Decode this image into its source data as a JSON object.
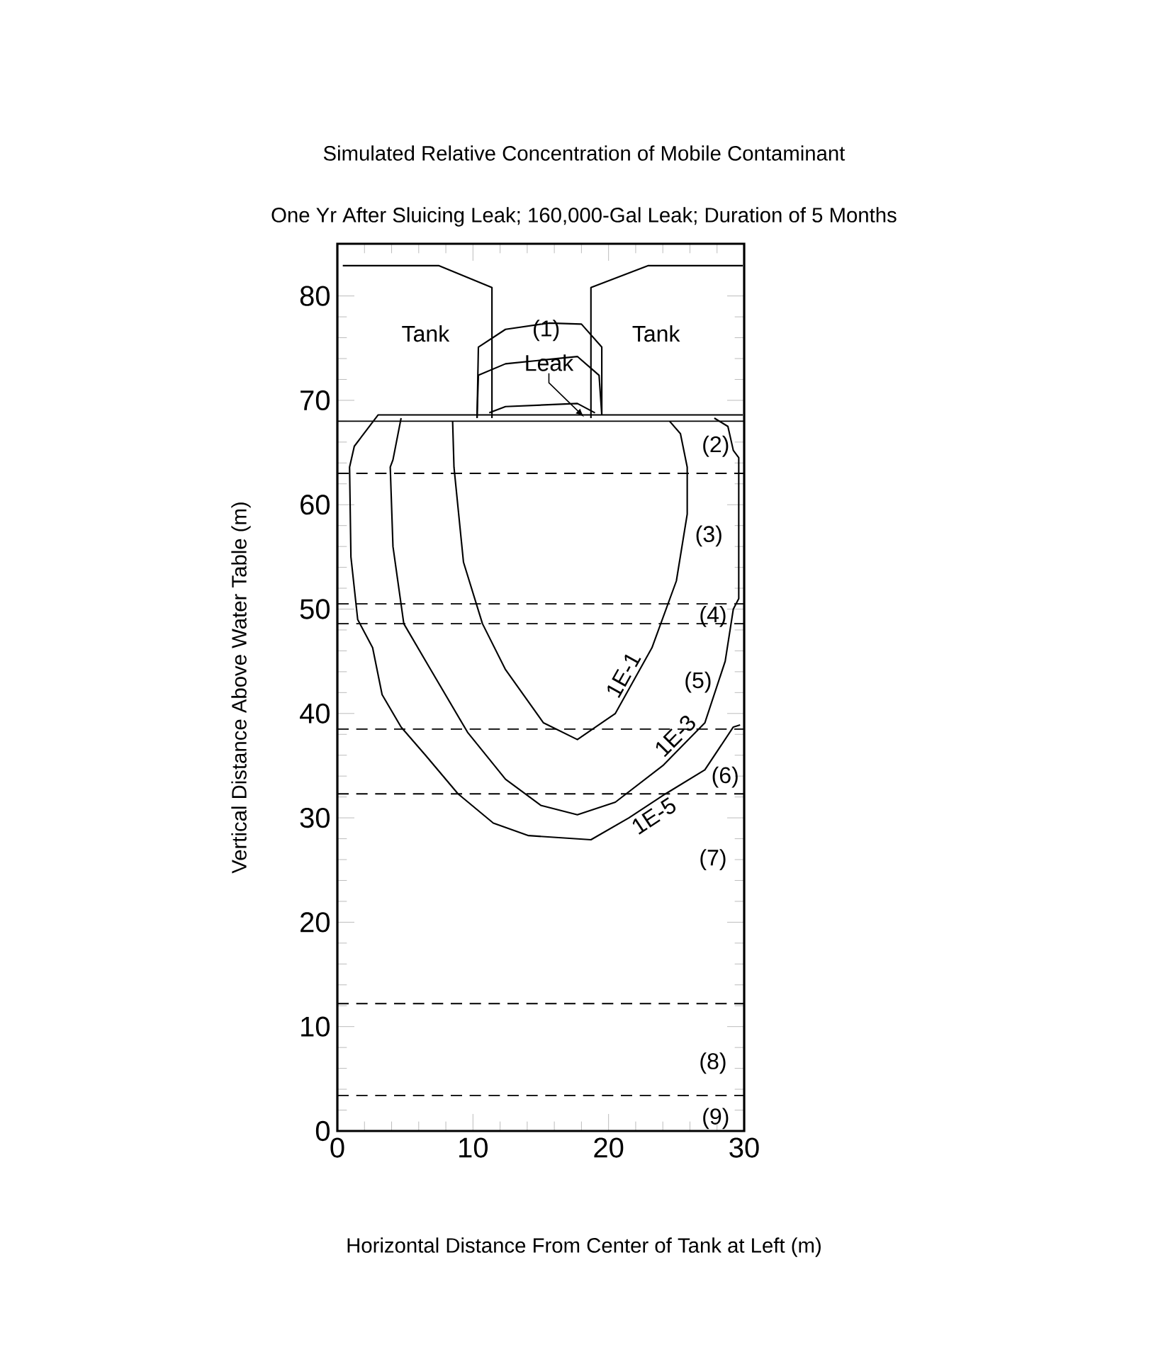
{
  "chart_data": {
    "type": "line",
    "title": "Simulated Relative Concentration of Mobile Contaminant",
    "subtitle": "One Yr After Sluicing Leak;  160,000-Gal Leak; Duration of 5 Months",
    "xlabel": "Horizontal Distance From Center of Tank at Left (m)",
    "ylabel": "Vertical Distance Above Water Table (m)",
    "xlim": [
      0,
      30
    ],
    "ylim": [
      0,
      85
    ],
    "xticks": [
      0,
      10,
      20,
      30
    ],
    "yticks": [
      0,
      10,
      20,
      30,
      40,
      50,
      60,
      70,
      80
    ],
    "grid": false,
    "marker": "none",
    "line_style": "solid",
    "series": [
      {
        "name": "1E-1",
        "color": "#000000",
        "x": [
          8.5,
          8.6,
          9.3,
          10.7,
          12.4,
          15.2,
          17.7,
          20.5,
          23.2,
          25,
          25.8,
          25.8,
          25.3,
          24.5
        ],
        "values": [
          68,
          63.6,
          54.5,
          48.6,
          44.2,
          39.1,
          37.5,
          40,
          46.3,
          52.7,
          59.1,
          63.6,
          66.8,
          68
        ]
      },
      {
        "name": "1E-3",
        "color": "#000000",
        "x": [
          4.7,
          4.1,
          3.9,
          4.1,
          4.9,
          6.7,
          9.6,
          12.4,
          15,
          17.7,
          20.5,
          24,
          27.1,
          28.6,
          29.2,
          29.6,
          29.6,
          29.2,
          28.8,
          27.8
        ],
        "values": [
          68.3,
          64.3,
          63.6,
          56,
          48.6,
          44.6,
          38.2,
          33.7,
          31.2,
          30.3,
          31.5,
          35,
          39.1,
          45,
          50,
          51,
          64.5,
          65.2,
          67.5,
          68.3
        ]
      },
      {
        "name": "1E-5",
        "color": "#000000",
        "x": [
          29.9,
          3,
          1.25,
          0.9,
          1,
          1.5,
          2.6,
          3.3,
          4.7,
          6.5,
          8.9,
          11.5,
          14.1,
          18.7,
          21.5,
          24.2,
          27.1,
          29.2,
          29.7
        ],
        "values": [
          68.6,
          68.6,
          65.6,
          63.6,
          55,
          49,
          46.3,
          41.8,
          38.7,
          36,
          32.3,
          29.5,
          28.3,
          27.9,
          30,
          32.3,
          34.6,
          38.7,
          38.9
        ]
      },
      {
        "color": "#000000",
        "x": [
          10.3,
          10.4,
          12.4,
          15.6,
          18,
          19.5,
          19.5
        ],
        "values": [
          68.3,
          75.1,
          76.8,
          77.4,
          77.3,
          75.1,
          68.6
        ]
      },
      {
        "color": "#000000",
        "x": [
          10.3,
          10.4,
          12.4,
          17.7,
          19.3,
          19.5
        ],
        "values": [
          68.3,
          72.4,
          73.5,
          74.2,
          72.4,
          68.6
        ]
      },
      {
        "color": "#000000",
        "x": [
          11.2,
          12.4,
          17.7,
          19
        ],
        "values": [
          68.8,
          69.4,
          69.7,
          68.8
        ]
      },
      {
        "color": "#000000",
        "x": [
          0.4,
          7.5,
          11.4,
          11.4
        ],
        "values": [
          82.9,
          82.9,
          80.8,
          68.3
        ]
      },
      {
        "color": "#000000",
        "x": [
          18.7,
          18.7,
          22.9,
          29.9
        ],
        "values": [
          68.3,
          80.8,
          82.9,
          82.9
        ]
      }
    ],
    "ref_lines": [
      {
        "axis": "y",
        "value": 68,
        "line_style": "solid",
        "color": "#000000"
      },
      {
        "axis": "y",
        "value": 63,
        "line_style": "dashed",
        "color": "#000000"
      },
      {
        "axis": "y",
        "value": 50.5,
        "line_style": "dashed",
        "color": "#000000"
      },
      {
        "axis": "y",
        "value": 48.6,
        "line_style": "dashed",
        "color": "#000000"
      },
      {
        "axis": "y",
        "value": 38.5,
        "line_style": "dashed",
        "color": "#000000"
      },
      {
        "axis": "y",
        "value": 32.3,
        "line_style": "dashed",
        "color": "#000000"
      },
      {
        "axis": "y",
        "value": 12.2,
        "line_style": "dashed",
        "color": "#000000"
      },
      {
        "axis": "y",
        "value": 3.4,
        "line_style": "dashed",
        "color": "#000000"
      }
    ],
    "annotations": [
      "Tank",
      "Tank",
      {
        "text": "Leak",
        "x": 18.2,
        "y": 68.4
      },
      "(1)",
      "(2)",
      "(3)",
      "(4)",
      "(5)",
      "(6)",
      "(7)",
      "(8)",
      "(9)"
    ]
  }
}
